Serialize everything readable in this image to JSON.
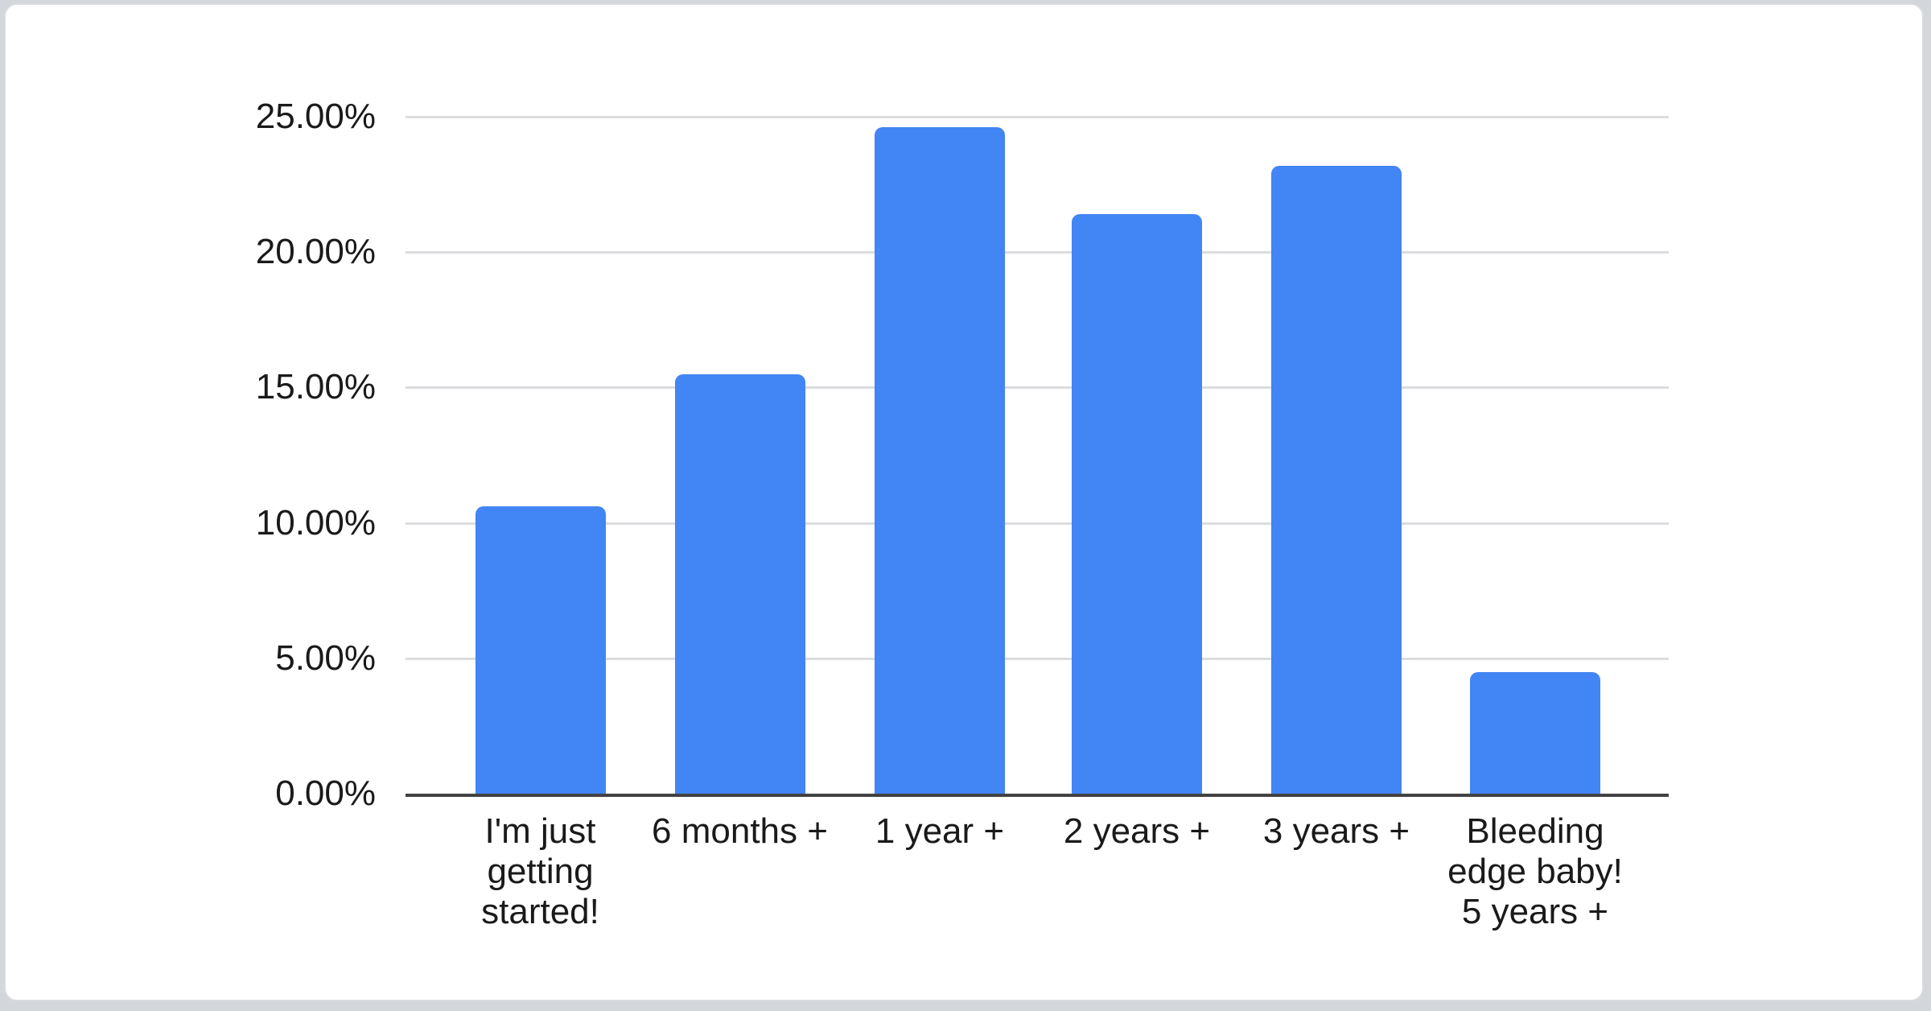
{
  "page": {
    "background_color": "#d3d6da",
    "card_background": "#ffffff",
    "card_border_color": "#d9dbde"
  },
  "chart_data": {
    "type": "bar",
    "title": "",
    "xlabel": "",
    "ylabel": "",
    "categories": [
      "I'm just\ngetting\nstarted!",
      "6 months +",
      "1 year +",
      "2 years +",
      "3 years +",
      "Bleeding\nedge baby!\n5 years +"
    ],
    "values": [
      10.6,
      15.5,
      24.6,
      21.4,
      23.2,
      4.5
    ],
    "y_ticks": [
      "25.00%",
      "20.00%",
      "15.00%",
      "10.00%",
      "5.00%",
      "0.00%"
    ],
    "y_tick_values": [
      25,
      20,
      15,
      10,
      5,
      0
    ],
    "ylim": [
      0,
      25
    ],
    "grid": true,
    "legend_position": "none",
    "bar_color": "#4285f4",
    "gridline_color": "#dadcde",
    "axis_line_color": "#424242",
    "label_color": "#1a1a1a"
  }
}
